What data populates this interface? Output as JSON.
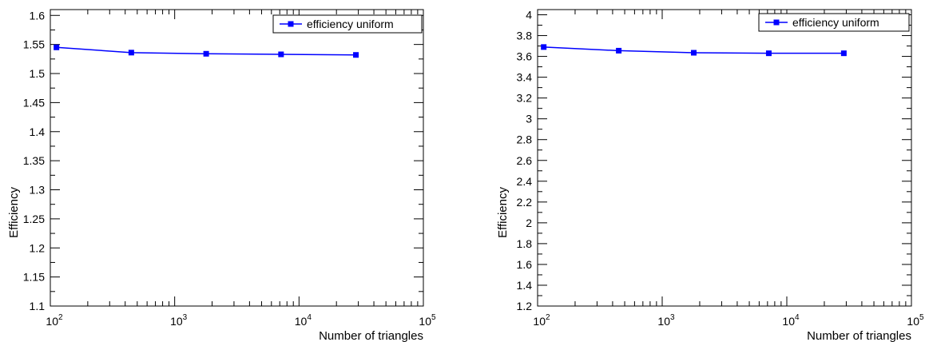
{
  "chart_data": [
    {
      "type": "line",
      "xlabel": "Number of triangles",
      "ylabel": "Efficiency",
      "xscale": "log",
      "xlim": [
        100,
        100000
      ],
      "ylim": [
        1.1,
        1.61
      ],
      "x_ticks": [
        100,
        1000,
        10000,
        100000
      ],
      "x_tick_labels": [
        {
          "base": "10",
          "exp": "2"
        },
        {
          "base": "10",
          "exp": "3"
        },
        {
          "base": "10",
          "exp": "4"
        },
        {
          "base": "10",
          "exp": "5"
        }
      ],
      "y_ticks": [
        1.1,
        1.15,
        1.2,
        1.25,
        1.3,
        1.35,
        1.4,
        1.45,
        1.5,
        1.55,
        1.6
      ],
      "y_tick_labels": [
        "1.1",
        "1.15",
        "1.2",
        "1.25",
        "1.3",
        "1.35",
        "1.4",
        "1.45",
        "1.5",
        "1.55",
        "1.6"
      ],
      "grid": false,
      "legend_position": "top-right",
      "series": [
        {
          "name": "efficiency uniform",
          "color": "#0000ff",
          "marker": "square",
          "x": [
            112,
            448,
            1792,
            7168,
            28672
          ],
          "y": [
            1.545,
            1.536,
            1.534,
            1.533,
            1.532
          ]
        }
      ]
    },
    {
      "type": "line",
      "xlabel": "Number of triangles",
      "ylabel": "Efficiency",
      "xscale": "log",
      "xlim": [
        100,
        100000
      ],
      "ylim": [
        1.2,
        4.05
      ],
      "x_ticks": [
        100,
        1000,
        10000,
        100000
      ],
      "x_tick_labels": [
        {
          "base": "10",
          "exp": "2"
        },
        {
          "base": "10",
          "exp": "3"
        },
        {
          "base": "10",
          "exp": "4"
        },
        {
          "base": "10",
          "exp": "5"
        }
      ],
      "y_ticks": [
        1.2,
        1.4,
        1.6,
        1.8,
        2,
        2.2,
        2.4,
        2.6,
        2.8,
        3,
        3.2,
        3.4,
        3.6,
        3.8,
        4
      ],
      "y_tick_labels": [
        "1.2",
        "1.4",
        "1.6",
        "1.8",
        "2",
        "2.2",
        "2.4",
        "2.6",
        "2.8",
        "3",
        "3.2",
        "3.4",
        "3.6",
        "3.8",
        "4"
      ],
      "grid": false,
      "legend_position": "top-right",
      "series": [
        {
          "name": "efficiency uniform",
          "color": "#0000ff",
          "marker": "square",
          "x": [
            112,
            448,
            1792,
            7168,
            28672
          ],
          "y": [
            3.69,
            3.655,
            3.635,
            3.63,
            3.63
          ]
        }
      ]
    }
  ]
}
